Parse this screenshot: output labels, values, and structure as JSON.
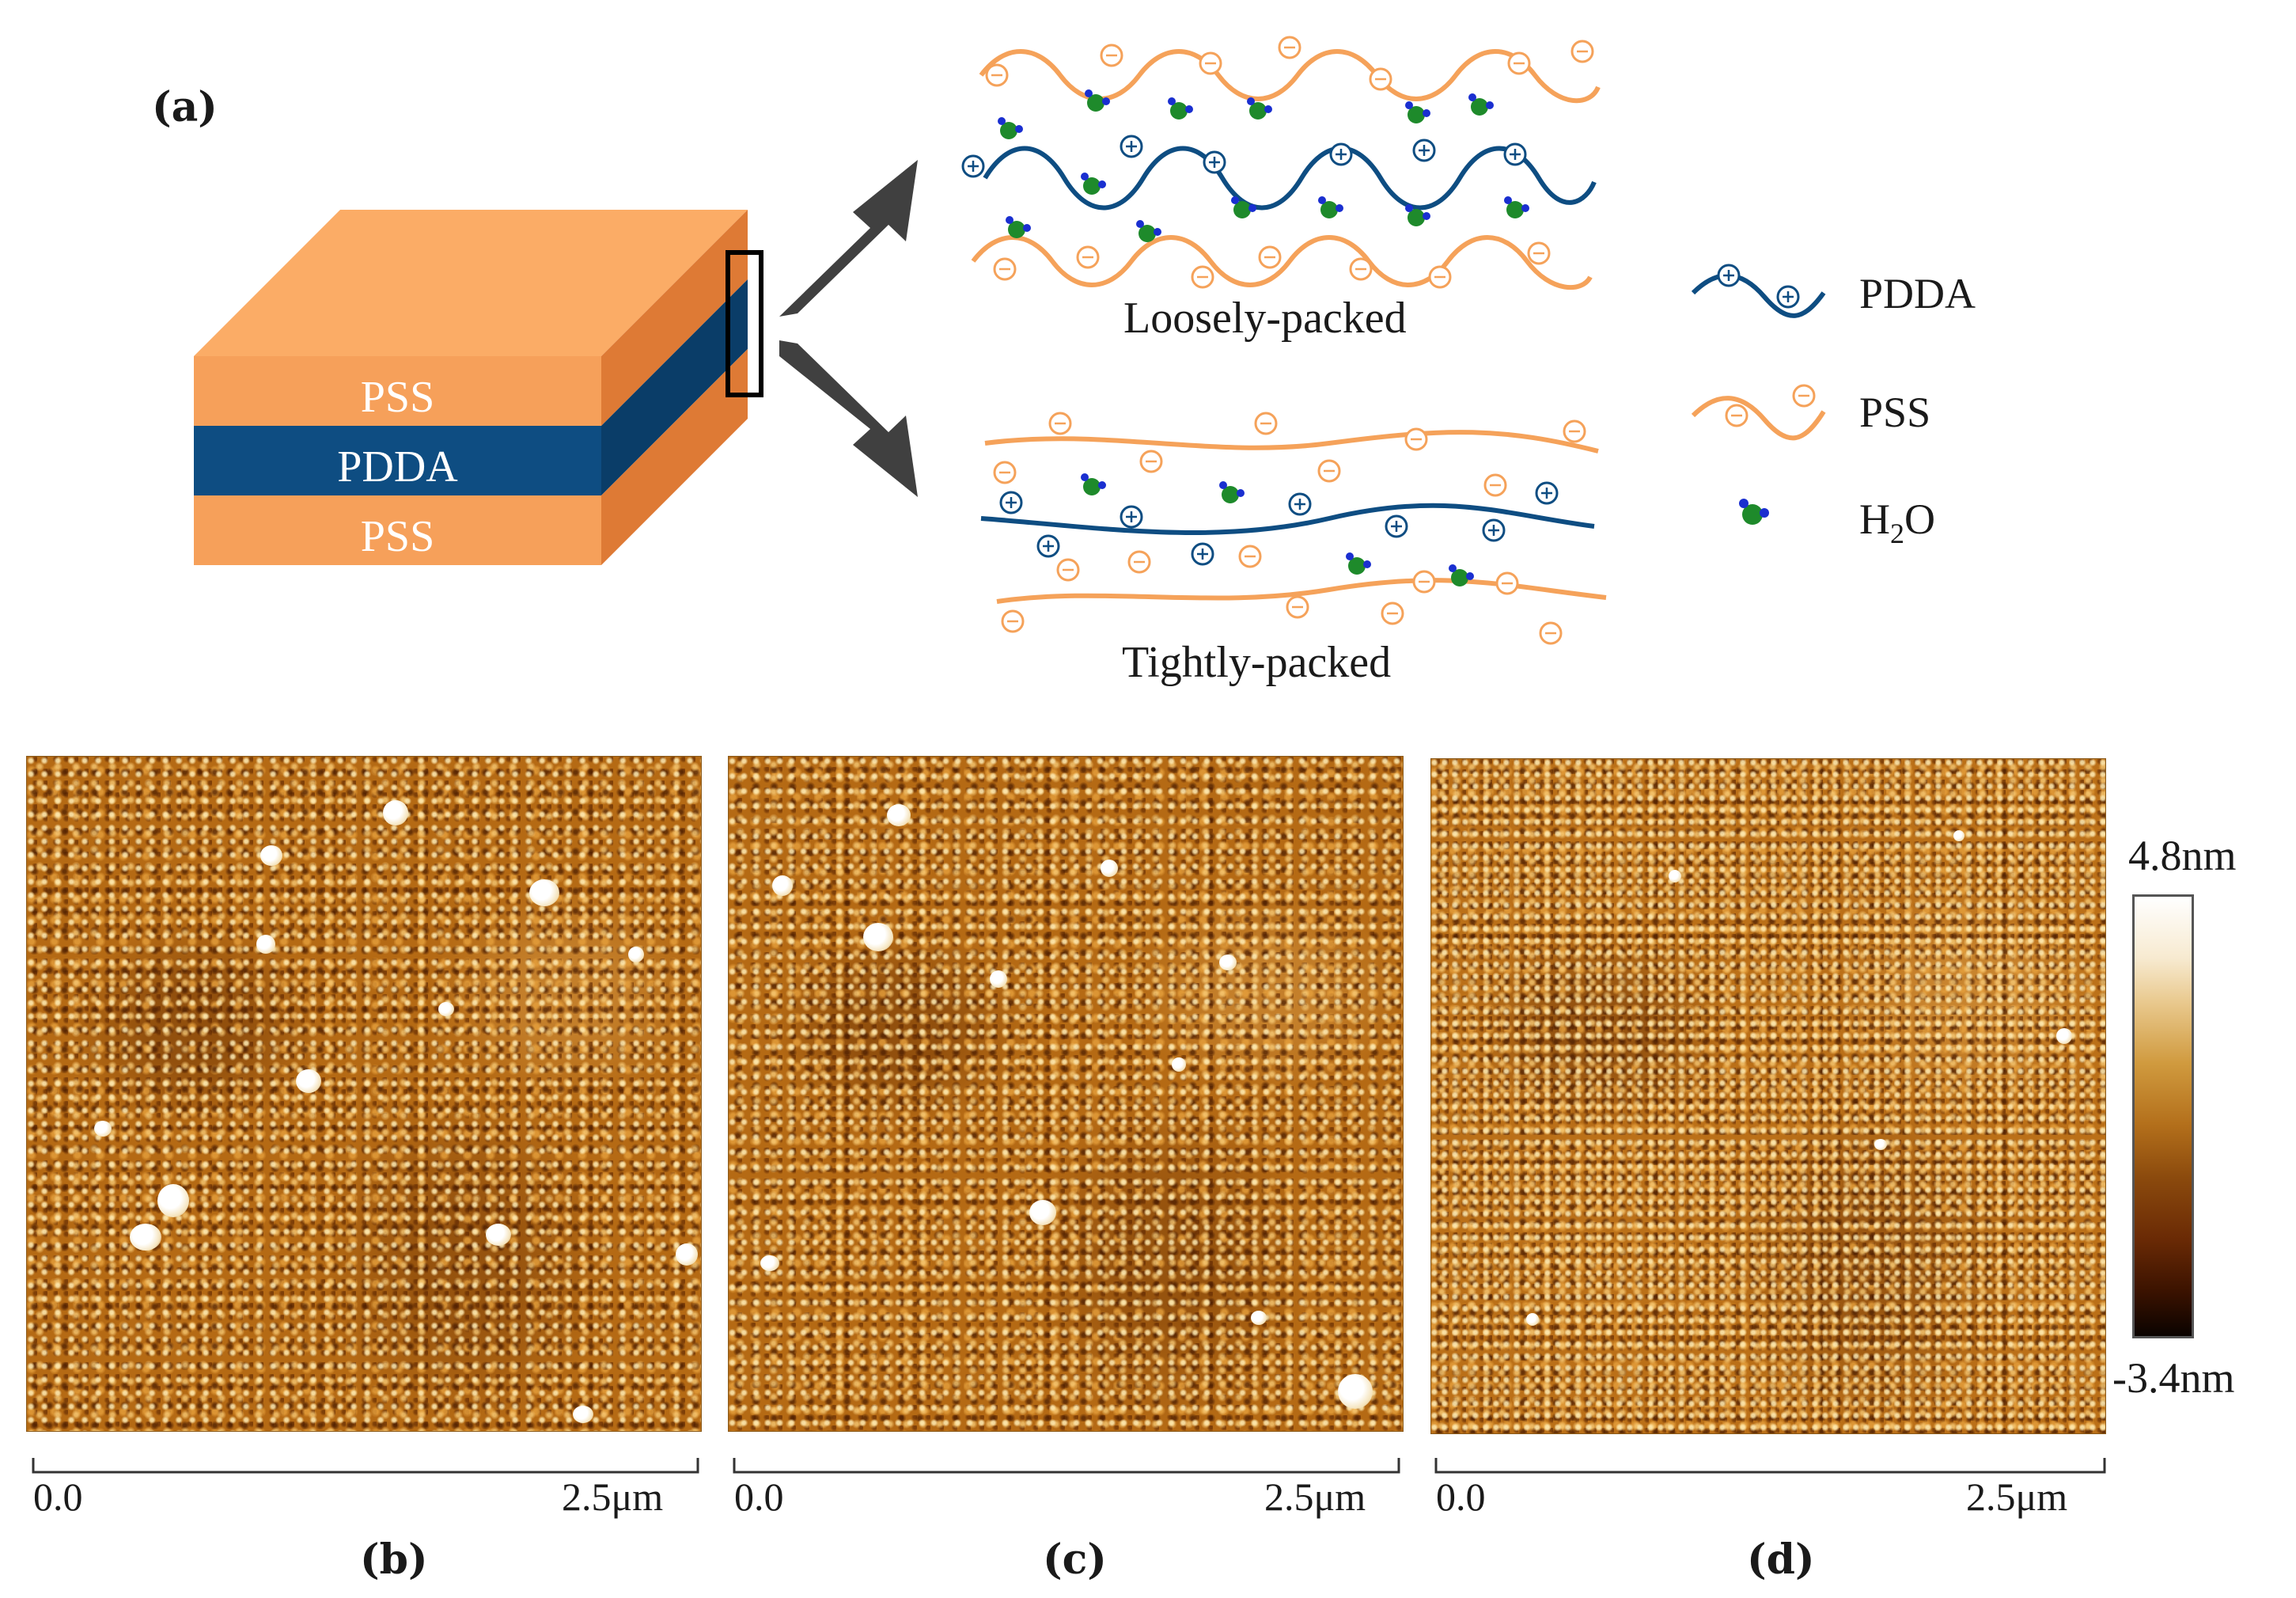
{
  "panel_a": {
    "label": "(a)",
    "layers": {
      "top": "PSS",
      "middle": "PDDA",
      "bottom": "PSS"
    },
    "loose_label": "Loosely-packed",
    "tight_label": "Tightly-packed"
  },
  "legend": {
    "items": [
      {
        "label": "PDDA",
        "icon": "pdda-chain-icon"
      },
      {
        "label": "PSS",
        "icon": "pss-chain-icon"
      },
      {
        "label_main": "H",
        "label_sub": "2",
        "label_tail": "O",
        "icon": "water-molecule-icon"
      }
    ]
  },
  "afm_panels": [
    {
      "label": "(b)",
      "axis_start": "0.0",
      "axis_end": "2.5μm"
    },
    {
      "label": "(c)",
      "axis_start": "0.0",
      "axis_end": "2.5μm"
    },
    {
      "label": "(d)",
      "axis_start": "0.0",
      "axis_end": "2.5μm"
    }
  ],
  "colorbar": {
    "max": "4.8nm",
    "min": "-3.4nm"
  },
  "colors": {
    "pss": "#f6a05a",
    "pdda": "#0e4d82",
    "pss_line": "#f5a25a",
    "pdda_line": "#0e4d82",
    "water": "#1e8a2b",
    "arrow": "#404040"
  }
}
